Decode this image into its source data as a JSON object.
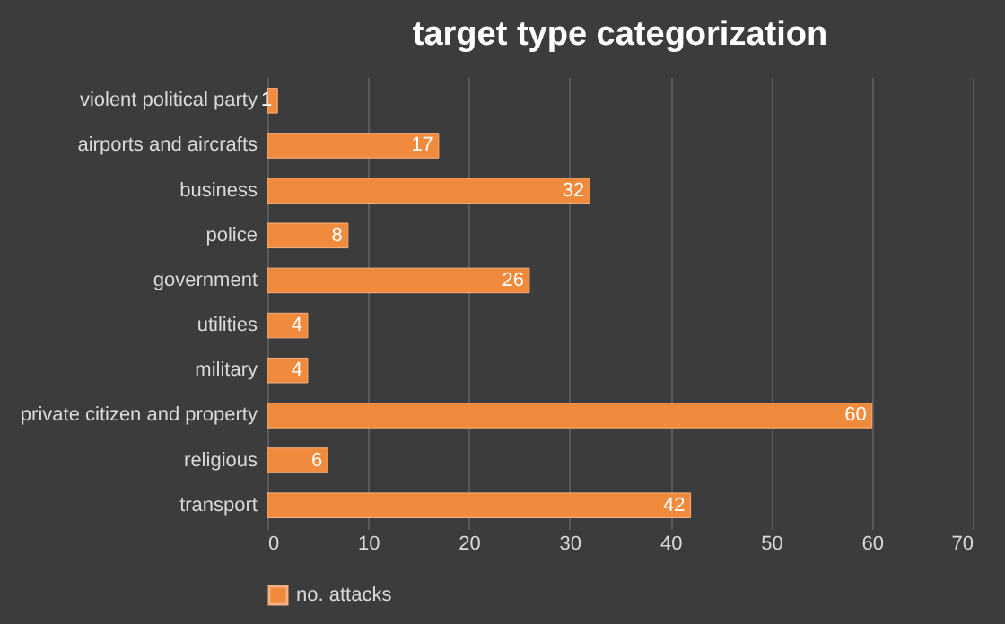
{
  "chart_data": {
    "type": "bar",
    "orientation": "horizontal",
    "title": "target type categorization",
    "categories": [
      "violent political party",
      "airports and aircrafts",
      "business",
      "police",
      "government",
      "utilities",
      "military",
      "private citizen and property",
      "religious",
      "transport"
    ],
    "series": [
      {
        "name": "no. attacks",
        "color": "#f08a3c",
        "values": [
          1,
          17,
          32,
          8,
          26,
          4,
          4,
          60,
          6,
          42
        ]
      }
    ],
    "xlim": [
      0,
      70
    ],
    "xticks": [
      0,
      10,
      20,
      30,
      40,
      50,
      60,
      70
    ],
    "grid": "x",
    "legend": "bottom",
    "data_labels": true
  }
}
